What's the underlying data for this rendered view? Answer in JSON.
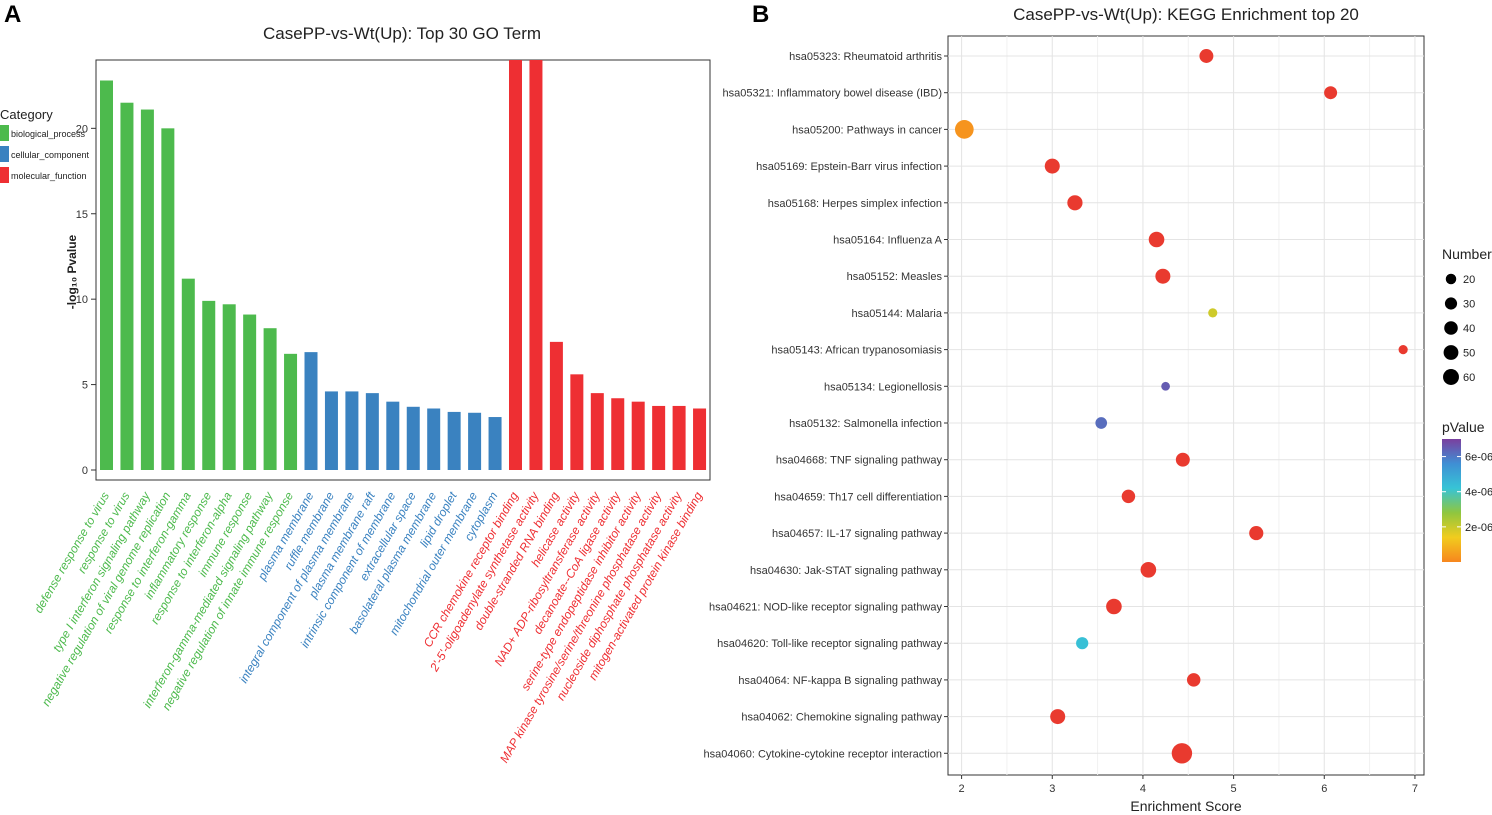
{
  "panels": {
    "a_label": "A",
    "b_label": "B"
  },
  "colors": {
    "biological_process": "#4dba4d",
    "cellular_component": "#3a82c0",
    "molecular_function": "#ee2f33",
    "grid": "#e6e6e6",
    "axis": "#222222"
  },
  "legend_a": {
    "title": "Category",
    "items": [
      {
        "key": "biological_process",
        "label": "biological_process"
      },
      {
        "key": "cellular_component",
        "label": "cellular_component"
      },
      {
        "key": "molecular_function",
        "label": "molecular_function"
      }
    ]
  },
  "legend_b": {
    "size_title": "Number",
    "size_values": [
      20,
      30,
      40,
      50,
      60
    ],
    "color_title": "pValue",
    "color_ticks": [
      "6e-06",
      "4e-06",
      "2e-06"
    ],
    "color_tick_values": [
      6e-06,
      4e-06,
      2e-06
    ],
    "color_range": [
      0,
      7e-06
    ]
  },
  "chart_data": [
    {
      "type": "bar",
      "title": "CasePP-vs-Wt(Up): Top 30 GO Term",
      "ylabel": "-log₁₀ Pvalue",
      "ylim": [
        0,
        24
      ],
      "yticks": [
        0,
        5,
        10,
        15,
        20
      ],
      "categories": [
        "defense response to virus",
        "response to virus",
        "type I interferon signaling pathway",
        "negative regulation of viral genome replication",
        "response to interferon-gamma",
        "inflammatory response",
        "response to interferon-alpha",
        "immune response",
        "interferon-gamma-mediated signaling pathway",
        "negative regulation of innate immune response",
        "plasma membrane",
        "ruffle membrane",
        "integral component of plasma membrane",
        "plasma membrane raft",
        "intrinsic component of membrane",
        "extracellular space",
        "basolateral plasma membrane",
        "lipid droplet",
        "mitochondrial outer membrane",
        "cytoplasm",
        "CCR chemokine receptor binding",
        "2'-5'-oligoadenylate synthetase activity",
        "double-stranded RNA binding",
        "helicase activity",
        "NAD+ ADP-ribosyltransferase activity",
        "decanoate--CoA ligase activity",
        "serine-type endopeptidase inhibitor activity",
        "MAP kinase tyrosine/serine/threonine phosphatase activity",
        "nucleoside diphosphate phosphatase activity",
        "mitogen-activated protein kinase binding"
      ],
      "values": [
        22.8,
        21.5,
        21.1,
        20.0,
        11.2,
        9.9,
        9.7,
        9.1,
        8.3,
        6.8,
        6.9,
        4.6,
        4.6,
        4.5,
        4.0,
        3.7,
        3.6,
        3.4,
        3.35,
        3.1,
        24.0,
        24.0,
        7.5,
        5.6,
        4.5,
        4.2,
        4.0,
        3.75,
        3.75,
        3.6
      ],
      "category_group": [
        "biological_process",
        "biological_process",
        "biological_process",
        "biological_process",
        "biological_process",
        "biological_process",
        "biological_process",
        "biological_process",
        "biological_process",
        "biological_process",
        "cellular_component",
        "cellular_component",
        "cellular_component",
        "cellular_component",
        "cellular_component",
        "cellular_component",
        "cellular_component",
        "cellular_component",
        "cellular_component",
        "cellular_component",
        "molecular_function",
        "molecular_function",
        "molecular_function",
        "molecular_function",
        "molecular_function",
        "molecular_function",
        "molecular_function",
        "molecular_function",
        "molecular_function",
        "molecular_function"
      ]
    },
    {
      "type": "scatter",
      "title": "CasePP-vs-Wt(Up): KEGG Enrichment top 20",
      "xlabel": "Enrichment Score",
      "xlim": [
        1.85,
        7.1
      ],
      "xticks": [
        2,
        3,
        4,
        5,
        6,
        7
      ],
      "pathways": [
        {
          "label": "hsa05323: Rheumatoid arthritis",
          "x": 4.7,
          "number": 22,
          "p": 1e-08
        },
        {
          "label": "hsa05321: Inflammatory bowel disease (IBD)",
          "x": 6.07,
          "number": 18,
          "p": 1e-08
        },
        {
          "label": "hsa05200: Pathways in cancer",
          "x": 2.03,
          "number": 48,
          "p": 2.7e-07
        },
        {
          "label": "hsa05169: Epstein-Barr virus infection",
          "x": 3.0,
          "number": 27,
          "p": 1e-08
        },
        {
          "label": "hsa05168: Herpes simplex infection",
          "x": 3.25,
          "number": 28,
          "p": 1e-08
        },
        {
          "label": "hsa05164: Influenza A",
          "x": 4.15,
          "number": 30,
          "p": 1e-08
        },
        {
          "label": "hsa05152: Measles",
          "x": 4.22,
          "number": 27,
          "p": 1e-08
        },
        {
          "label": "hsa05144: Malaria",
          "x": 4.77,
          "number": 6,
          "p": 1.9e-06
        },
        {
          "label": "hsa05143: African trypanosomiasis",
          "x": 6.87,
          "number": 6,
          "p": 1e-08
        },
        {
          "label": "hsa05134: Legionellosis",
          "x": 4.25,
          "number": 5,
          "p": 6.5e-06
        },
        {
          "label": "hsa05132: Salmonella infection",
          "x": 3.54,
          "number": 13,
          "p": 6.2e-06
        },
        {
          "label": "hsa04668: TNF signaling pathway",
          "x": 4.44,
          "number": 22,
          "p": 1e-08
        },
        {
          "label": "hsa04659: Th17 cell differentiation",
          "x": 3.84,
          "number": 20,
          "p": 1e-08
        },
        {
          "label": "hsa04657: IL-17 signaling pathway",
          "x": 5.25,
          "number": 23,
          "p": 1e-08
        },
        {
          "label": "hsa04630: Jak-STAT signaling pathway",
          "x": 4.06,
          "number": 30,
          "p": 1e-08
        },
        {
          "label": "hsa04621: NOD-like receptor signaling pathway",
          "x": 3.68,
          "number": 30,
          "p": 1e-08
        },
        {
          "label": "hsa04620: Toll-like receptor signaling pathway",
          "x": 3.33,
          "number": 15,
          "p": 4.3e-06
        },
        {
          "label": "hsa04064: NF-kappa B signaling pathway",
          "x": 4.56,
          "number": 20,
          "p": 1e-08
        },
        {
          "label": "hsa04062: Chemokine signaling pathway",
          "x": 3.06,
          "number": 27,
          "p": 1e-08
        },
        {
          "label": "hsa04060: Cytokine-cytokine receptor interaction",
          "x": 4.43,
          "number": 60,
          "p": 1e-08
        }
      ]
    }
  ]
}
